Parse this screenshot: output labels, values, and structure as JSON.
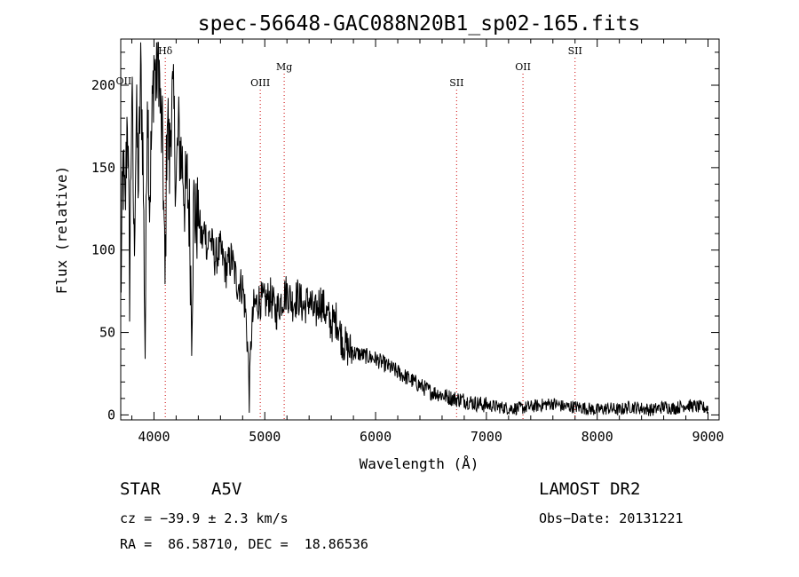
{
  "chart_data": {
    "type": "line",
    "title": "spec-56648-GAC088N20B1_sp02-165.fits",
    "xlabel": "Wavelength (Å)",
    "ylabel": "Flux (relative)",
    "xlim": [
      3700,
      9100
    ],
    "ylim": [
      -3,
      228
    ],
    "x_ticks": [
      4000,
      5000,
      6000,
      7000,
      8000,
      9000
    ],
    "y_ticks": [
      0,
      50,
      100,
      150,
      200
    ],
    "grid": false,
    "line_color": "#000000",
    "spectrum_sample": {
      "x": [
        3700,
        3720,
        3740,
        3760,
        3780,
        3800,
        3820,
        3840,
        3860,
        3880,
        3900,
        3920,
        3940,
        3960,
        3980,
        4000,
        4020,
        4040,
        4060,
        4080,
        4100,
        4120,
        4140,
        4160,
        4180,
        4200,
        4220,
        4240,
        4260,
        4280,
        4300,
        4320,
        4340,
        4360,
        4380,
        4400,
        4420,
        4440,
        4460,
        4480,
        4500,
        4550,
        4600,
        4650,
        4700,
        4750,
        4800,
        4830,
        4850,
        4861,
        4875,
        4900,
        4950,
        5000,
        5050,
        5100,
        5150,
        5200,
        5250,
        5300,
        5350,
        5400,
        5450,
        5500,
        5550,
        5600,
        5650,
        5700,
        5750,
        5800,
        5900,
        6000,
        6100,
        6200,
        6300,
        6400,
        6500,
        6563,
        6600,
        6700,
        6800,
        6900,
        7000,
        7100,
        7200,
        7300,
        7400,
        7500,
        7600,
        7700,
        7800,
        7900,
        8000,
        8100,
        8200,
        8300,
        8400,
        8500,
        8600,
        8700,
        8800,
        8900,
        9000
      ],
      "y": [
        70,
        150,
        120,
        190,
        80,
        200,
        100,
        180,
        140,
        210,
        160,
        40,
        205,
        130,
        170,
        215,
        200,
        225,
        180,
        160,
        75,
        190,
        150,
        195,
        180,
        140,
        170,
        160,
        150,
        130,
        140,
        120,
        60,
        130,
        115,
        125,
        110,
        105,
        115,
        100,
        110,
        95,
        100,
        88,
        95,
        80,
        78,
        60,
        35,
        10,
        45,
        65,
        70,
        68,
        72,
        62,
        70,
        75,
        68,
        72,
        65,
        70,
        60,
        70,
        62,
        55,
        58,
        45,
        40,
        38,
        36,
        34,
        30,
        26,
        22,
        18,
        14,
        13,
        12,
        10,
        9,
        7,
        6,
        5,
        4,
        4,
        5,
        6,
        7,
        5,
        5,
        4,
        3,
        4,
        3,
        5,
        4,
        3,
        5,
        4,
        6,
        5,
        4
      ]
    },
    "lines": [
      {
        "label": "OII",
        "x": 3727,
        "line": false
      },
      {
        "label": "Hδ",
        "x": 4102,
        "line": true
      },
      {
        "label": "OIII",
        "x": 4959,
        "line": true
      },
      {
        "label": "Mg",
        "x": 5175,
        "line": true
      },
      {
        "label": "SII",
        "x": 6731,
        "line": true
      },
      {
        "label": "OII",
        "x": 7330,
        "line": true
      },
      {
        "label": "SII",
        "x": 7800,
        "line": true
      }
    ],
    "line_marker_color": "#cc0000"
  },
  "info": {
    "object_type": "STAR",
    "subclass": "A5V",
    "survey": "LAMOST DR2",
    "cz": "cz = −39.9 ± 2.3 km/s",
    "obs_date": "Obs−Date: 20131221",
    "coords": "RA =  86.58710, DEC =  18.86536"
  }
}
